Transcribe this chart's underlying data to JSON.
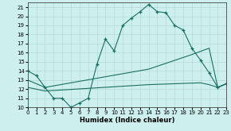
{
  "xlabel": "Humidex (Indice chaleur)",
  "bg_color": "#cdf0ee",
  "line_color": "#1a7060",
  "xlim": [
    0,
    23
  ],
  "ylim": [
    10,
    21.5
  ],
  "yticks": [
    10,
    11,
    12,
    13,
    14,
    15,
    16,
    17,
    18,
    19,
    20,
    21
  ],
  "xticks": [
    0,
    1,
    2,
    3,
    4,
    5,
    6,
    7,
    8,
    9,
    10,
    11,
    12,
    13,
    14,
    15,
    16,
    17,
    18,
    19,
    20,
    21,
    22,
    23
  ],
  "series1_x": [
    0,
    1,
    2,
    3,
    4,
    5,
    6,
    7,
    8,
    9,
    10,
    11,
    12,
    13,
    14,
    15,
    16,
    17,
    18,
    19,
    20,
    21,
    22,
    23
  ],
  "series1_y": [
    14.0,
    13.5,
    12.2,
    11.0,
    11.0,
    10.0,
    10.5,
    11.0,
    14.7,
    17.5,
    16.2,
    19.0,
    19.8,
    20.5,
    21.3,
    20.5,
    20.4,
    19.0,
    18.5,
    16.5,
    15.2,
    13.8,
    12.2,
    12.6
  ],
  "series2_x": [
    0,
    2,
    14,
    19,
    21,
    22,
    23
  ],
  "series2_y": [
    13.0,
    12.2,
    14.2,
    15.8,
    16.5,
    12.2,
    12.6
  ],
  "series3_x": [
    0,
    2,
    14,
    20,
    21,
    22,
    23
  ],
  "series3_y": [
    12.2,
    11.8,
    12.5,
    12.7,
    12.5,
    12.2,
    12.6
  ]
}
